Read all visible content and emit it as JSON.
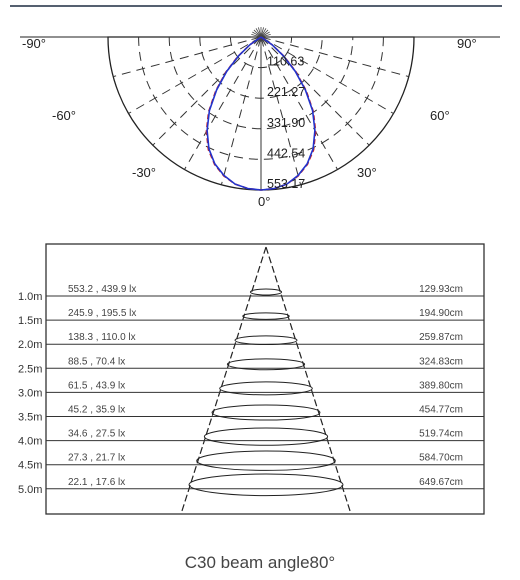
{
  "chart_data": [
    {
      "type": "polar_line",
      "angle_labels": [
        "-90°",
        "90°",
        "-60°",
        "60°",
        "-30°",
        "30°",
        "0°"
      ],
      "radial_tick_labels": [
        "110.63",
        "221.27",
        "331.90",
        "442.54",
        "553.17"
      ],
      "rmax": 553.17,
      "series": [
        {
          "color": "#cc2222",
          "dashed": true,
          "angles": [
            0,
            5,
            10,
            15,
            20,
            25,
            30,
            35,
            40,
            45,
            50,
            55,
            60
          ],
          "values": [
            553.17,
            550,
            540,
            520,
            490,
            450,
            395,
            330,
            255,
            180,
            110,
            50,
            0
          ]
        },
        {
          "color": "#2233cc",
          "dashed": false,
          "angles": [
            0,
            5,
            10,
            15,
            20,
            25,
            30,
            35,
            40,
            45,
            50,
            55,
            60
          ],
          "values": [
            553.17,
            550,
            540,
            518,
            488,
            446,
            390,
            325,
            250,
            175,
            105,
            48,
            0
          ]
        }
      ]
    },
    {
      "type": "table",
      "rows": [
        {
          "distance": "1.0m",
          "lux": "553.2 , 439.9 lx",
          "diameter": "129.93cm"
        },
        {
          "distance": "1.5m",
          "lux": "245.9 , 195.5 lx",
          "diameter": "194.90cm"
        },
        {
          "distance": "2.0m",
          "lux": "138.3 , 110.0 lx",
          "diameter": "259.87cm"
        },
        {
          "distance": "2.5m",
          "lux": "88.5 , 70.4 lx",
          "diameter": "324.83cm"
        },
        {
          "distance": "3.0m",
          "lux": "61.5 , 43.9 lx",
          "diameter": "389.80cm"
        },
        {
          "distance": "3.5m",
          "lux": "45.2 , 35.9 lx",
          "diameter": "454.77cm"
        },
        {
          "distance": "4.0m",
          "lux": "34.6 , 27.5 lx",
          "diameter": "519.74cm"
        },
        {
          "distance": "4.5m",
          "lux": "27.3 , 21.7 lx",
          "diameter": "584.70cm"
        },
        {
          "distance": "5.0m",
          "lux": "22.1 , 17.6 lx",
          "diameter": "649.67cm"
        }
      ]
    }
  ],
  "caption": "C30 beam angle80°"
}
